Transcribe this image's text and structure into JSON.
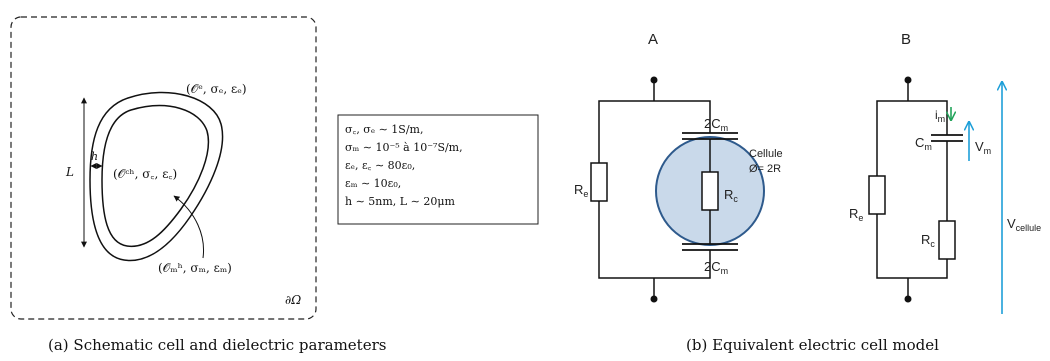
{
  "subfigure_a": {
    "outer_label": "(𝒪ᵉ, σₑ, εₑ)",
    "inner_label": "(𝒪ᶜʰ, σ꜀, ε꜀)",
    "membrane_label": "(𝒪ₘʰ, σₘ, εₘ)",
    "length_label": "L",
    "thickness_label": "h",
    "boundary_label": "∂Ω",
    "parameters": [
      "σ꜀, σₑ ∼ 1S/m,",
      "σₘ ∼ 10⁻⁵ à 10⁻⁷S/m,",
      "εₑ, ε꜀ ∼ 80ε₀,",
      "εₘ ∼ 10ε₀,",
      "h ∼ 5nm,    L ∼ 20μm"
    ],
    "caption": "(a) Schematic cell and dielectric parameters"
  },
  "subfigure_b": {
    "circuit_a": {
      "title": "A",
      "cap_top": "2C",
      "cap_top_sub": "m",
      "cap_bottom": "2C",
      "cap_bottom_sub": "m",
      "re": "R",
      "re_sub": "e",
      "rc": "R",
      "rc_sub": "c",
      "cell_label_1": "Cellule",
      "cell_label_2": "Ø= 2R"
    },
    "circuit_b": {
      "title": "B",
      "re": "R",
      "re_sub": "e",
      "cm": "C",
      "cm_sub": "m",
      "rc": "R",
      "rc_sub": "c",
      "im": "i",
      "im_sub": "m",
      "vm": "V",
      "vm_sub": "m",
      "vcell": "V",
      "vcell_sub": "cellule"
    },
    "caption": "(b) Equivalent electric cell model"
  },
  "colors": {
    "cell_fill": "#c9d9ea",
    "cell_stroke": "#2e5a8c",
    "cell_text": "#2e5a8c",
    "voltage_arrow": "#1e9fd8",
    "current_arrow": "#22a35a"
  }
}
